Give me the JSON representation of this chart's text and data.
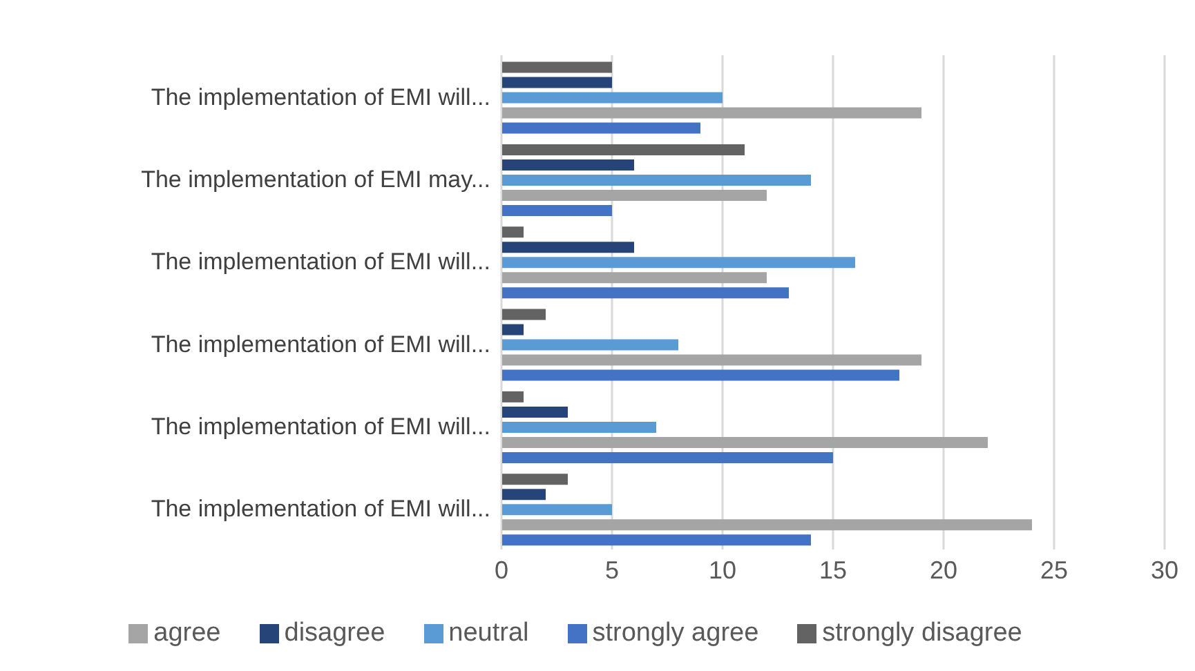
{
  "chart_data": {
    "type": "bar",
    "orientation": "horizontal",
    "categories": [
      "The implementation of EMI will...",
      "The implementation of EMI may...",
      "The implementation of EMI will...",
      "The implementation of EMI will...",
      "The implementation of EMI will...",
      "The implementation of EMI will..."
    ],
    "series": [
      {
        "name": "strongly disagree",
        "color": "#636363",
        "values": [
          5,
          11,
          1,
          2,
          1,
          3
        ]
      },
      {
        "name": "disagree",
        "color": "#264478",
        "values": [
          5,
          6,
          6,
          1,
          3,
          2
        ]
      },
      {
        "name": "neutral",
        "color": "#5b9bd5",
        "values": [
          10,
          14,
          16,
          8,
          7,
          5
        ]
      },
      {
        "name": "agree",
        "color": "#a5a5a5",
        "values": [
          19,
          12,
          12,
          19,
          22,
          24
        ]
      },
      {
        "name": "strongly agree",
        "color": "#4472c4",
        "values": [
          9,
          5,
          13,
          18,
          15,
          14
        ]
      }
    ],
    "xlim": [
      0,
      30
    ],
    "xticks": [
      0,
      5,
      10,
      15,
      20,
      25,
      30
    ],
    "grid": "x",
    "legend": "bottom"
  }
}
